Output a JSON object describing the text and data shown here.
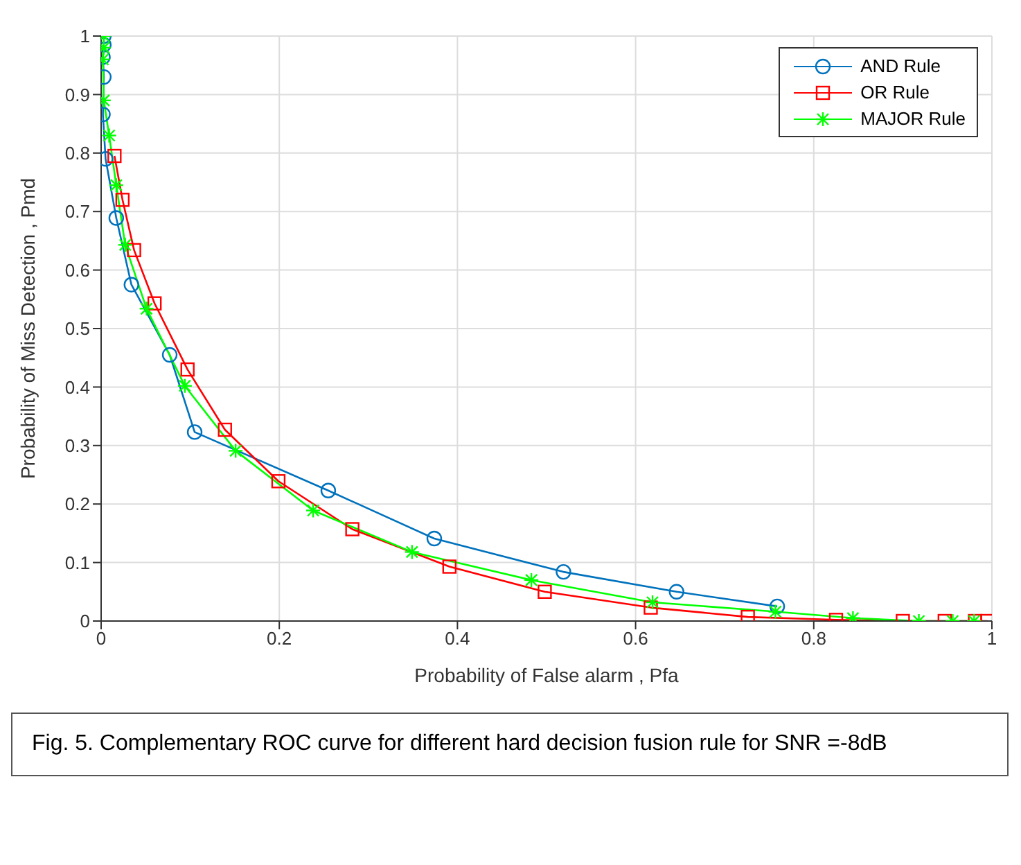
{
  "chart_data": {
    "type": "line",
    "xlabel": "Probability of False alarm , Pfa",
    "ylabel": "Probability of Miss Detection , Pmd",
    "xlim": [
      0,
      1
    ],
    "xticks": [
      0,
      0.2,
      0.4,
      0.6,
      0.8,
      1
    ],
    "ylim": [
      0,
      1
    ],
    "yticks": [
      0,
      0.1,
      0.2,
      0.3,
      0.4,
      0.5,
      0.6,
      0.7,
      0.8,
      0.9,
      1
    ],
    "grid": true,
    "legend": "top right",
    "line_style": "solid",
    "series": [
      {
        "name": "AND Rule",
        "color": "#0072bd",
        "marker": "circle",
        "x": [
          0.003,
          0.003,
          0.002,
          0.003,
          0.002,
          0.005,
          0.017,
          0.034,
          0.077,
          0.105,
          0.255,
          0.374,
          0.519,
          0.646,
          0.759
        ],
        "values": [
          1.0,
          0.985,
          0.964,
          0.93,
          0.866,
          0.79,
          0.689,
          0.575,
          0.455,
          0.323,
          0.223,
          0.141,
          0.084,
          0.05,
          0.025
        ]
      },
      {
        "name": "OR Rule",
        "color": "#ff0000",
        "marker": "square",
        "x": [
          0.015,
          0.024,
          0.037,
          0.06,
          0.097,
          0.139,
          0.199,
          0.282,
          0.391,
          0.498,
          0.617,
          0.726,
          0.825,
          0.9,
          0.947,
          0.981,
          0.995
        ],
        "values": [
          0.795,
          0.72,
          0.634,
          0.543,
          0.43,
          0.327,
          0.239,
          0.157,
          0.093,
          0.05,
          0.023,
          0.007,
          0.002,
          0,
          0,
          0,
          0
        ]
      },
      {
        "name": "MAJOR Rule",
        "color": "#00ff00",
        "marker": "cross",
        "x": [
          0.003,
          0.003,
          0.002,
          0.003,
          0.009,
          0.017,
          0.027,
          0.051,
          0.094,
          0.151,
          0.238,
          0.349,
          0.483,
          0.619,
          0.757,
          0.844,
          0.918,
          0.956,
          0.98
        ],
        "values": [
          1.0,
          0.98,
          0.96,
          0.89,
          0.83,
          0.745,
          0.643,
          0.534,
          0.402,
          0.291,
          0.189,
          0.118,
          0.07,
          0.032,
          0.016,
          0.005,
          0,
          0,
          0
        ]
      }
    ],
    "annotations": [
      "Fig. 5. Complementary ROC curve for different hard decision fusion rule for SNR =-8dB"
    ]
  }
}
